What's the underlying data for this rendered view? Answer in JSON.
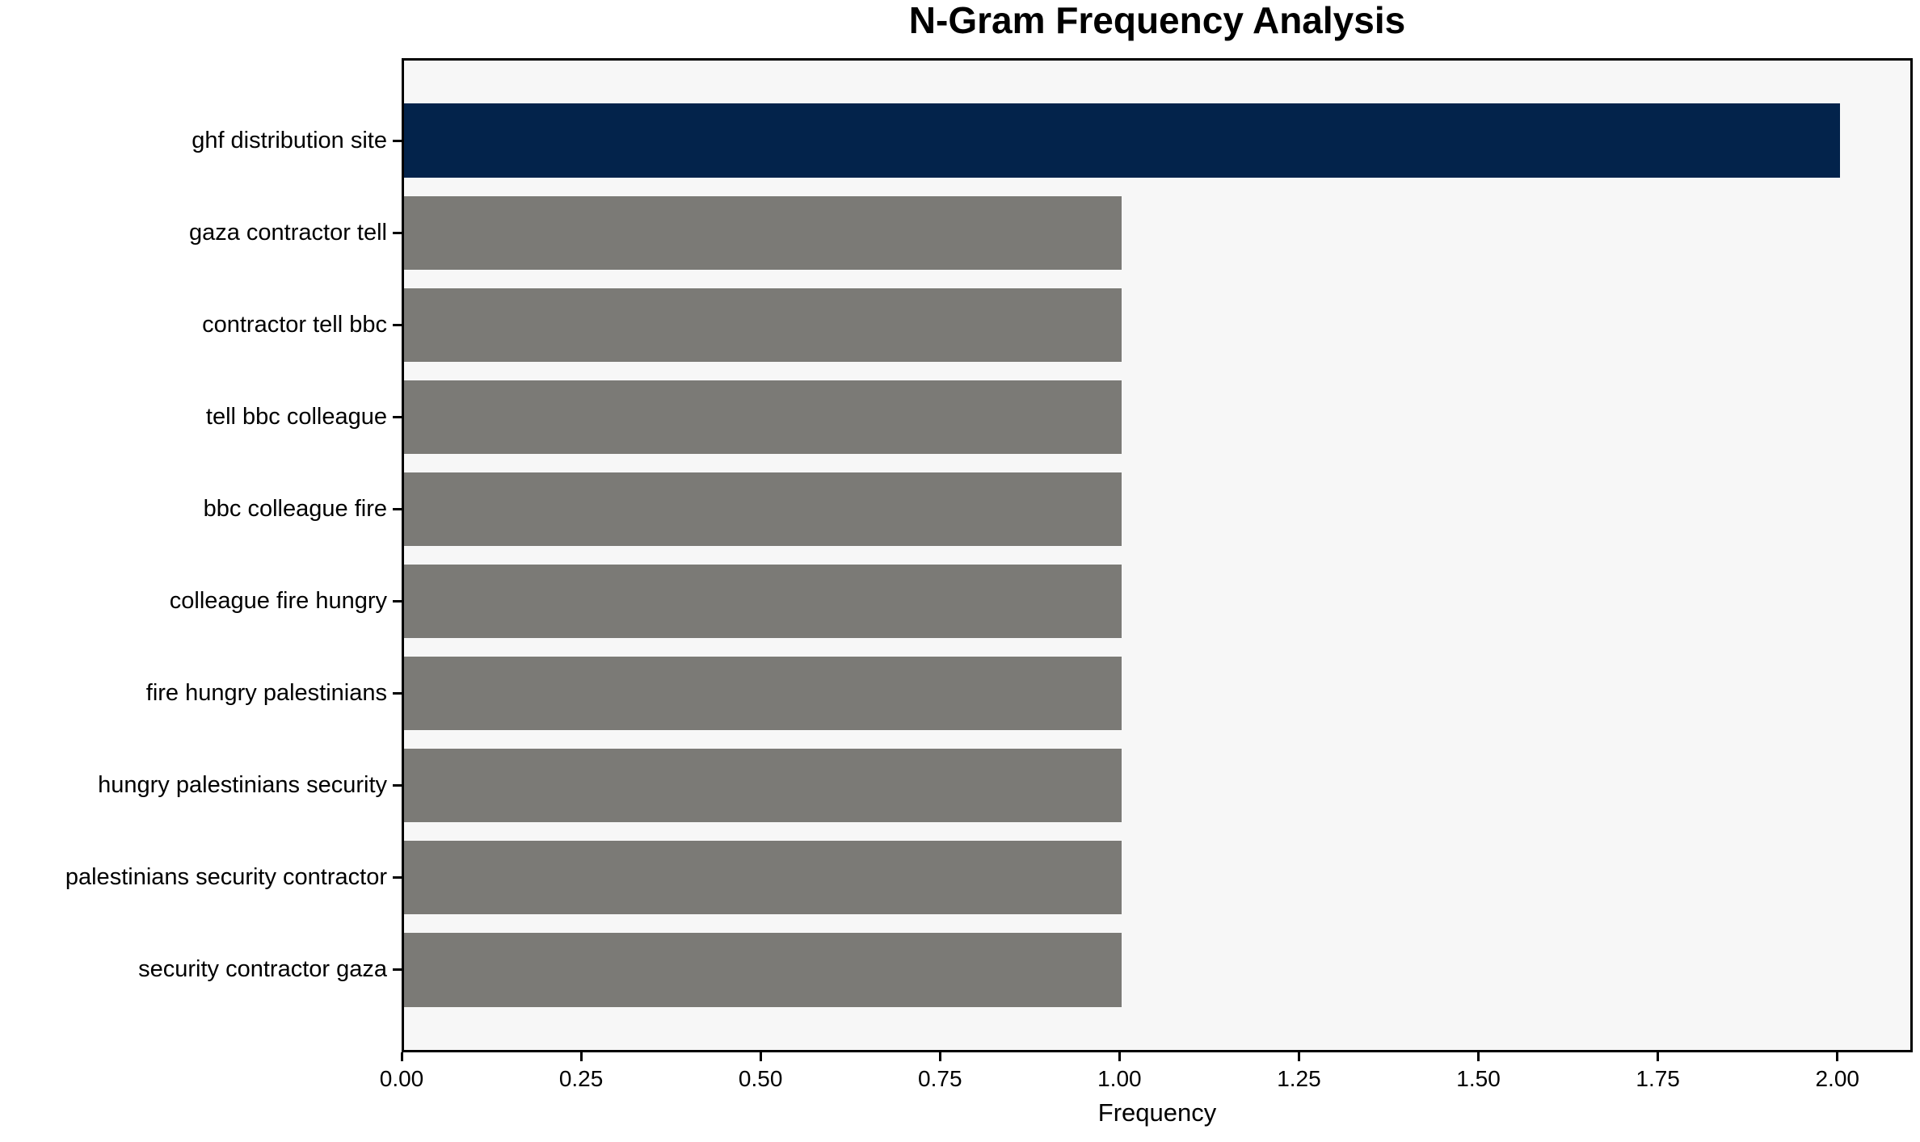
{
  "chart_data": {
    "type": "bar",
    "orientation": "horizontal",
    "title": "N-Gram Frequency Analysis",
    "xlabel": "Frequency",
    "ylabel": "",
    "categories": [
      "ghf distribution site",
      "gaza contractor tell",
      "contractor tell bbc",
      "tell bbc colleague",
      "bbc colleague fire",
      "colleague fire hungry",
      "fire hungry palestinians",
      "hungry palestinians security",
      "palestinians security contractor",
      "security contractor gaza"
    ],
    "values": [
      2.0,
      1.0,
      1.0,
      1.0,
      1.0,
      1.0,
      1.0,
      1.0,
      1.0,
      1.0
    ],
    "bar_colors": [
      "#03234B",
      "#7B7A76",
      "#7B7A76",
      "#7B7A76",
      "#7B7A76",
      "#7B7A76",
      "#7B7A76",
      "#7B7A76",
      "#7B7A76",
      "#7B7A76"
    ],
    "xlim": [
      0,
      2.105
    ],
    "xticks": {
      "values": [
        0,
        0.25,
        0.5,
        0.75,
        1.0,
        1.25,
        1.5,
        1.75,
        2.0
      ],
      "labels": [
        "0.00",
        "0.25",
        "0.50",
        "0.75",
        "1.00",
        "1.25",
        "1.50",
        "1.75",
        "2.00"
      ]
    },
    "grid": false,
    "legend_position": "none",
    "colors": {
      "figure_background": "#FFFFFF",
      "plot_background": "#F7F7F7",
      "spine": "#000000",
      "highlight_bar": "#03234B",
      "default_bar": "#7B7A76",
      "text": "#000000"
    }
  }
}
